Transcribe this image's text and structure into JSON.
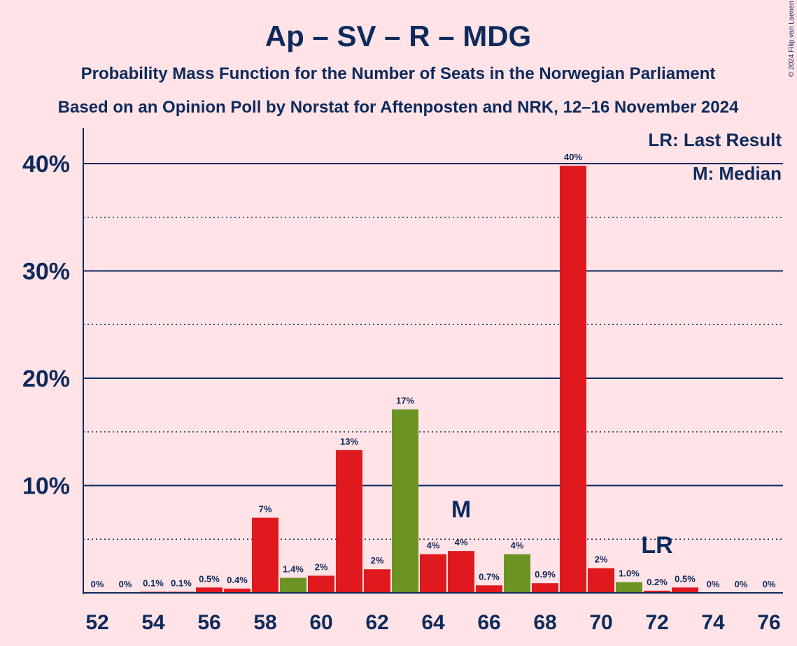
{
  "chart_data": {
    "type": "bar",
    "title": "Ap – SV – R – MDG",
    "subtitle_lines": [
      "Probability Mass Function for the Number of Seats in the Norwegian Parliament",
      "Based on an Opinion Poll by Norstat for Aftenposten and NRK, 12–16 November 2024"
    ],
    "copyright": "© 2024 Filip van Laenen",
    "x": [
      52,
      53,
      54,
      55,
      56,
      57,
      58,
      59,
      60,
      61,
      62,
      63,
      64,
      65,
      66,
      67,
      68,
      69,
      70,
      71,
      72,
      73,
      74,
      75,
      76
    ],
    "values": [
      0,
      0,
      0.1,
      0.1,
      0.5,
      0.4,
      7.0,
      1.4,
      1.6,
      13.3,
      2.2,
      17.1,
      3.6,
      3.9,
      0.7,
      3.6,
      0.9,
      39.8,
      2.3,
      1.0,
      0.2,
      0.5,
      0,
      0,
      0
    ],
    "labels": [
      "0%",
      "0%",
      "0.1%",
      "0.1%",
      "0.5%",
      "0.4%",
      "7%",
      "1.4%",
      "2%",
      "13%",
      "2%",
      "17%",
      "4%",
      "4%",
      "0.7%",
      "4%",
      "0.9%",
      "40%",
      "2%",
      "1.0%",
      "0.2%",
      "0.5%",
      "0%",
      "0%",
      "0%"
    ],
    "bar_colors": [
      "#E0191F",
      "#E0191F",
      "#E0191F",
      "#E0191F",
      "#E0191F",
      "#E0191F",
      "#E0191F",
      "#6B9424",
      "#E0191F",
      "#E0191F",
      "#E0191F",
      "#6B9424",
      "#E0191F",
      "#E0191F",
      "#E0191F",
      "#6B9424",
      "#E0191F",
      "#E0191F",
      "#E0191F",
      "#6B9424",
      "#E0191F",
      "#E0191F",
      "#E0191F",
      "#E0191F",
      "#E0191F"
    ],
    "ylim": [
      0,
      43
    ],
    "yticks": [
      10,
      20,
      30,
      40
    ],
    "ytick_labels": [
      "10%",
      "20%",
      "30%",
      "40%"
    ],
    "minor_gridlines": [
      5,
      15,
      25,
      35
    ],
    "xtick_values": [
      52,
      54,
      56,
      58,
      60,
      62,
      64,
      66,
      68,
      70,
      72,
      74,
      76
    ],
    "xtick_labels": [
      "52",
      "54",
      "56",
      "58",
      "60",
      "62",
      "64",
      "66",
      "68",
      "70",
      "72",
      "74",
      "76"
    ],
    "median": {
      "x": 65,
      "label": "M"
    },
    "last_result": {
      "x": 72,
      "label": "LR"
    },
    "legend": [
      "LR: Last Result",
      "M: Median"
    ],
    "legend_placement": "top-right",
    "colors": {
      "background": "#FFE3E6",
      "text": "#0E2A5C",
      "red": "#E0191F",
      "green": "#6B9424"
    }
  }
}
